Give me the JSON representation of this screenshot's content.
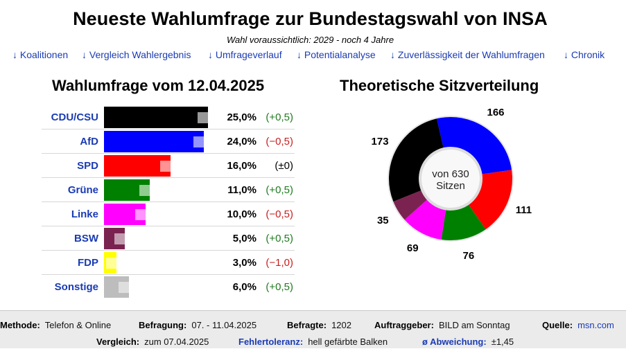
{
  "header": {
    "title": "Neueste Wahlumfrage zur Bundestagswahl von INSA",
    "subtitle": "Wahl voraussichtlich: 2029 - noch 4 Jahre"
  },
  "nav": [
    {
      "label": "↓ Koalitionen"
    },
    {
      "label": "↓ Vergleich Wahlergebnis"
    },
    {
      "label": "↓ Umfrageverlauf"
    },
    {
      "label": "↓ Potentialanalyse"
    },
    {
      "label": "↓ Zuverlässigkeit der Wahlumfragen"
    },
    {
      "label": "↓ Chronik"
    }
  ],
  "poll": {
    "heading": "Wahlumfrage vom 12.04.2025",
    "parties": [
      {
        "name": "CDU/CSU",
        "value": 25.0,
        "previous": 24.5,
        "percent_label": "25,0%",
        "change_label": "(+0,5)",
        "change_kind": "pos",
        "color": "#000000",
        "prev_color": "#b3b3b3"
      },
      {
        "name": "AfD",
        "value": 24.0,
        "previous": 24.5,
        "percent_label": "24,0%",
        "change_label": "(−0,5)",
        "change_kind": "neg",
        "color": "#0000ff",
        "prev_color": "#aeaeff"
      },
      {
        "name": "SPD",
        "value": 16.0,
        "previous": 16.0,
        "percent_label": "16,0%",
        "change_label": "(±0)",
        "change_kind": "neu",
        "color": "#ff0000",
        "prev_color": "#ffacac"
      },
      {
        "name": "Grüne",
        "value": 11.0,
        "previous": 10.5,
        "percent_label": "11,0%",
        "change_label": "(+0,5)",
        "change_kind": "pos",
        "color": "#008000",
        "prev_color": "#a9d9a9"
      },
      {
        "name": "Linke",
        "value": 10.0,
        "previous": 10.5,
        "percent_label": "10,0%",
        "change_label": "(−0,5)",
        "change_kind": "neg",
        "color": "#ff00ff",
        "prev_color": "#ffadff"
      },
      {
        "name": "BSW",
        "value": 5.0,
        "previous": 4.5,
        "percent_label": "5,0%",
        "change_label": "(+0,5)",
        "change_kind": "pos",
        "color": "#7b2350",
        "prev_color": "#cfb3c1"
      },
      {
        "name": "FDP",
        "value": 3.0,
        "previous": 4.0,
        "percent_label": "3,0%",
        "change_label": "(−1,0)",
        "change_kind": "neg",
        "color": "#ffff00",
        "prev_color": "#ffffb0"
      },
      {
        "name": "Sonstige",
        "value": 6.0,
        "previous": 5.5,
        "percent_label": "6,0%",
        "change_label": "(+0,5)",
        "change_kind": "pos",
        "color": "#bdbdbd",
        "prev_color": "#e4e4e4"
      }
    ]
  },
  "seats": {
    "heading": "Theoretische Sitzverteilung",
    "center_line1": "von 630",
    "center_line2": "Sitzen",
    "total": 630,
    "segments": [
      {
        "party": "AfD",
        "seats": 166,
        "label": "166",
        "color": "#0000ff"
      },
      {
        "party": "SPD",
        "seats": 111,
        "label": "111",
        "color": "#ff0000"
      },
      {
        "party": "Grüne",
        "seats": 76,
        "label": "76",
        "color": "#008000"
      },
      {
        "party": "Linke",
        "seats": 69,
        "label": "69",
        "color": "#ff00ff"
      },
      {
        "party": "BSW",
        "seats": 35,
        "label": "35",
        "color": "#7b2350"
      },
      {
        "party": "CDU/CSU",
        "seats": 173,
        "label": "173",
        "color": "#000000"
      }
    ]
  },
  "footer": {
    "method_key": "Methode:",
    "method_val": "Telefon & Online",
    "survey_key": "Befragung:",
    "survey_val": "07. - 11.04.2025",
    "respondents_key": "Befragte:",
    "respondents_val": "1202",
    "client_key": "Auftraggeber:",
    "client_val": "BILD am Sonntag",
    "source_key": "Quelle:",
    "source_val": "msn.com",
    "compare_key": "Vergleich:",
    "compare_val": "zum 07.04.2025",
    "tolerance_key": "Fehlertoleranz:",
    "tolerance_val": "hell gefärbte Balken",
    "deviation_key": "ø Abweichung:",
    "deviation_val": "±1,45"
  },
  "chart_data": [
    {
      "type": "bar",
      "title": "Wahlumfrage vom 12.04.2025",
      "categories": [
        "CDU/CSU",
        "AfD",
        "SPD",
        "Grüne",
        "Linke",
        "BSW",
        "FDP",
        "Sonstige"
      ],
      "values": [
        25.0,
        24.0,
        16.0,
        11.0,
        10.0,
        5.0,
        3.0,
        6.0
      ],
      "changes": [
        0.5,
        -0.5,
        0,
        0.5,
        -0.5,
        0.5,
        -1.0,
        0.5
      ],
      "orientation": "horizontal"
    },
    {
      "type": "pie",
      "title": "Theoretische Sitzverteilung",
      "categories": [
        "AfD",
        "SPD",
        "Grüne",
        "Linke",
        "BSW",
        "CDU/CSU"
      ],
      "values": [
        166,
        111,
        76,
        69,
        35,
        173
      ]
    }
  ]
}
